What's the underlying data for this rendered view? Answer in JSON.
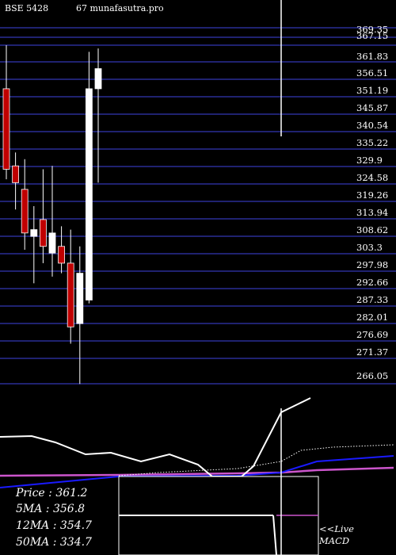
{
  "header": {
    "left": "BSE 5428",
    "right": "67 munafasutra.pro"
  },
  "chart_data": {
    "type": "candlestick",
    "y_ticks": [
      "369.35",
      "367.15",
      "361.83",
      "356.51",
      "351.19",
      "345.87",
      "340.54",
      "335.22",
      "329.9",
      "324.58",
      "319.26",
      "313.94",
      "308.62",
      "303.3",
      "297.98",
      "292.66",
      "287.33",
      "282.01",
      "276.69",
      "271.37",
      "266.05"
    ],
    "ylim": [
      266.05,
      369.35
    ],
    "candles": [
      {
        "open": 354,
        "high": 367,
        "low": 327,
        "close": 330,
        "color": "red"
      },
      {
        "open": 331,
        "high": 335,
        "low": 318,
        "close": 326,
        "color": "red"
      },
      {
        "open": 324,
        "high": 333,
        "low": 306,
        "close": 311,
        "color": "red"
      },
      {
        "open": 312,
        "high": 319,
        "low": 296,
        "close": 310,
        "color": "white"
      },
      {
        "open": 315,
        "high": 330,
        "low": 302,
        "close": 307,
        "color": "red"
      },
      {
        "open": 311,
        "high": 331,
        "low": 298,
        "close": 305,
        "color": "white"
      },
      {
        "open": 307,
        "high": 313,
        "low": 299,
        "close": 302,
        "color": "red"
      },
      {
        "open": 302,
        "high": 312,
        "low": 278,
        "close": 283,
        "color": "red"
      },
      {
        "open": 284,
        "high": 307,
        "low": 266,
        "close": 299,
        "color": "white"
      },
      {
        "open": 291,
        "high": 365,
        "low": 290,
        "close": 354,
        "color": "white"
      },
      {
        "open": 354,
        "high": 366,
        "low": 326,
        "close": 360,
        "color": "white"
      }
    ],
    "indicator_lines": {
      "price_line": [
        [
          0,
          551
        ],
        [
          40,
          550
        ],
        [
          70,
          558
        ],
        [
          108,
          573
        ],
        [
          140,
          571
        ],
        [
          178,
          582
        ],
        [
          214,
          573
        ],
        [
          250,
          586
        ],
        [
          268,
          601
        ],
        [
          305,
          601
        ],
        [
          320,
          588
        ],
        [
          355,
          520
        ],
        [
          392,
          502
        ]
      ],
      "dotted_line": [
        [
          150,
          600
        ],
        [
          200,
          596
        ],
        [
          300,
          591
        ],
        [
          355,
          582
        ],
        [
          380,
          568
        ],
        [
          420,
          564
        ],
        [
          497,
          561
        ]
      ],
      "blue_line": [
        [
          0,
          615
        ],
        [
          150,
          601
        ],
        [
          300,
          600
        ],
        [
          355,
          596
        ],
        [
          400,
          582
        ],
        [
          497,
          575
        ]
      ],
      "magenta_line": [
        [
          0,
          600
        ],
        [
          150,
          599
        ],
        [
          300,
          597
        ],
        [
          355,
          596
        ],
        [
          400,
          593
        ],
        [
          497,
          590
        ]
      ]
    }
  },
  "info": {
    "price": "Price   : 361.2",
    "ma5": "5MA : 356.8",
    "ma12": "12MA : 354.7",
    "ma50": "50MA : 334.7"
  },
  "macd_label": {
    "line1": "<<Live",
    "line2": "MACD"
  },
  "colors": {
    "grid": "#1f2270",
    "candle_red": "#c00000",
    "candle_white": "#ffffff",
    "blue_line": "#1a1aff",
    "magenta_line": "#cc55cc"
  }
}
